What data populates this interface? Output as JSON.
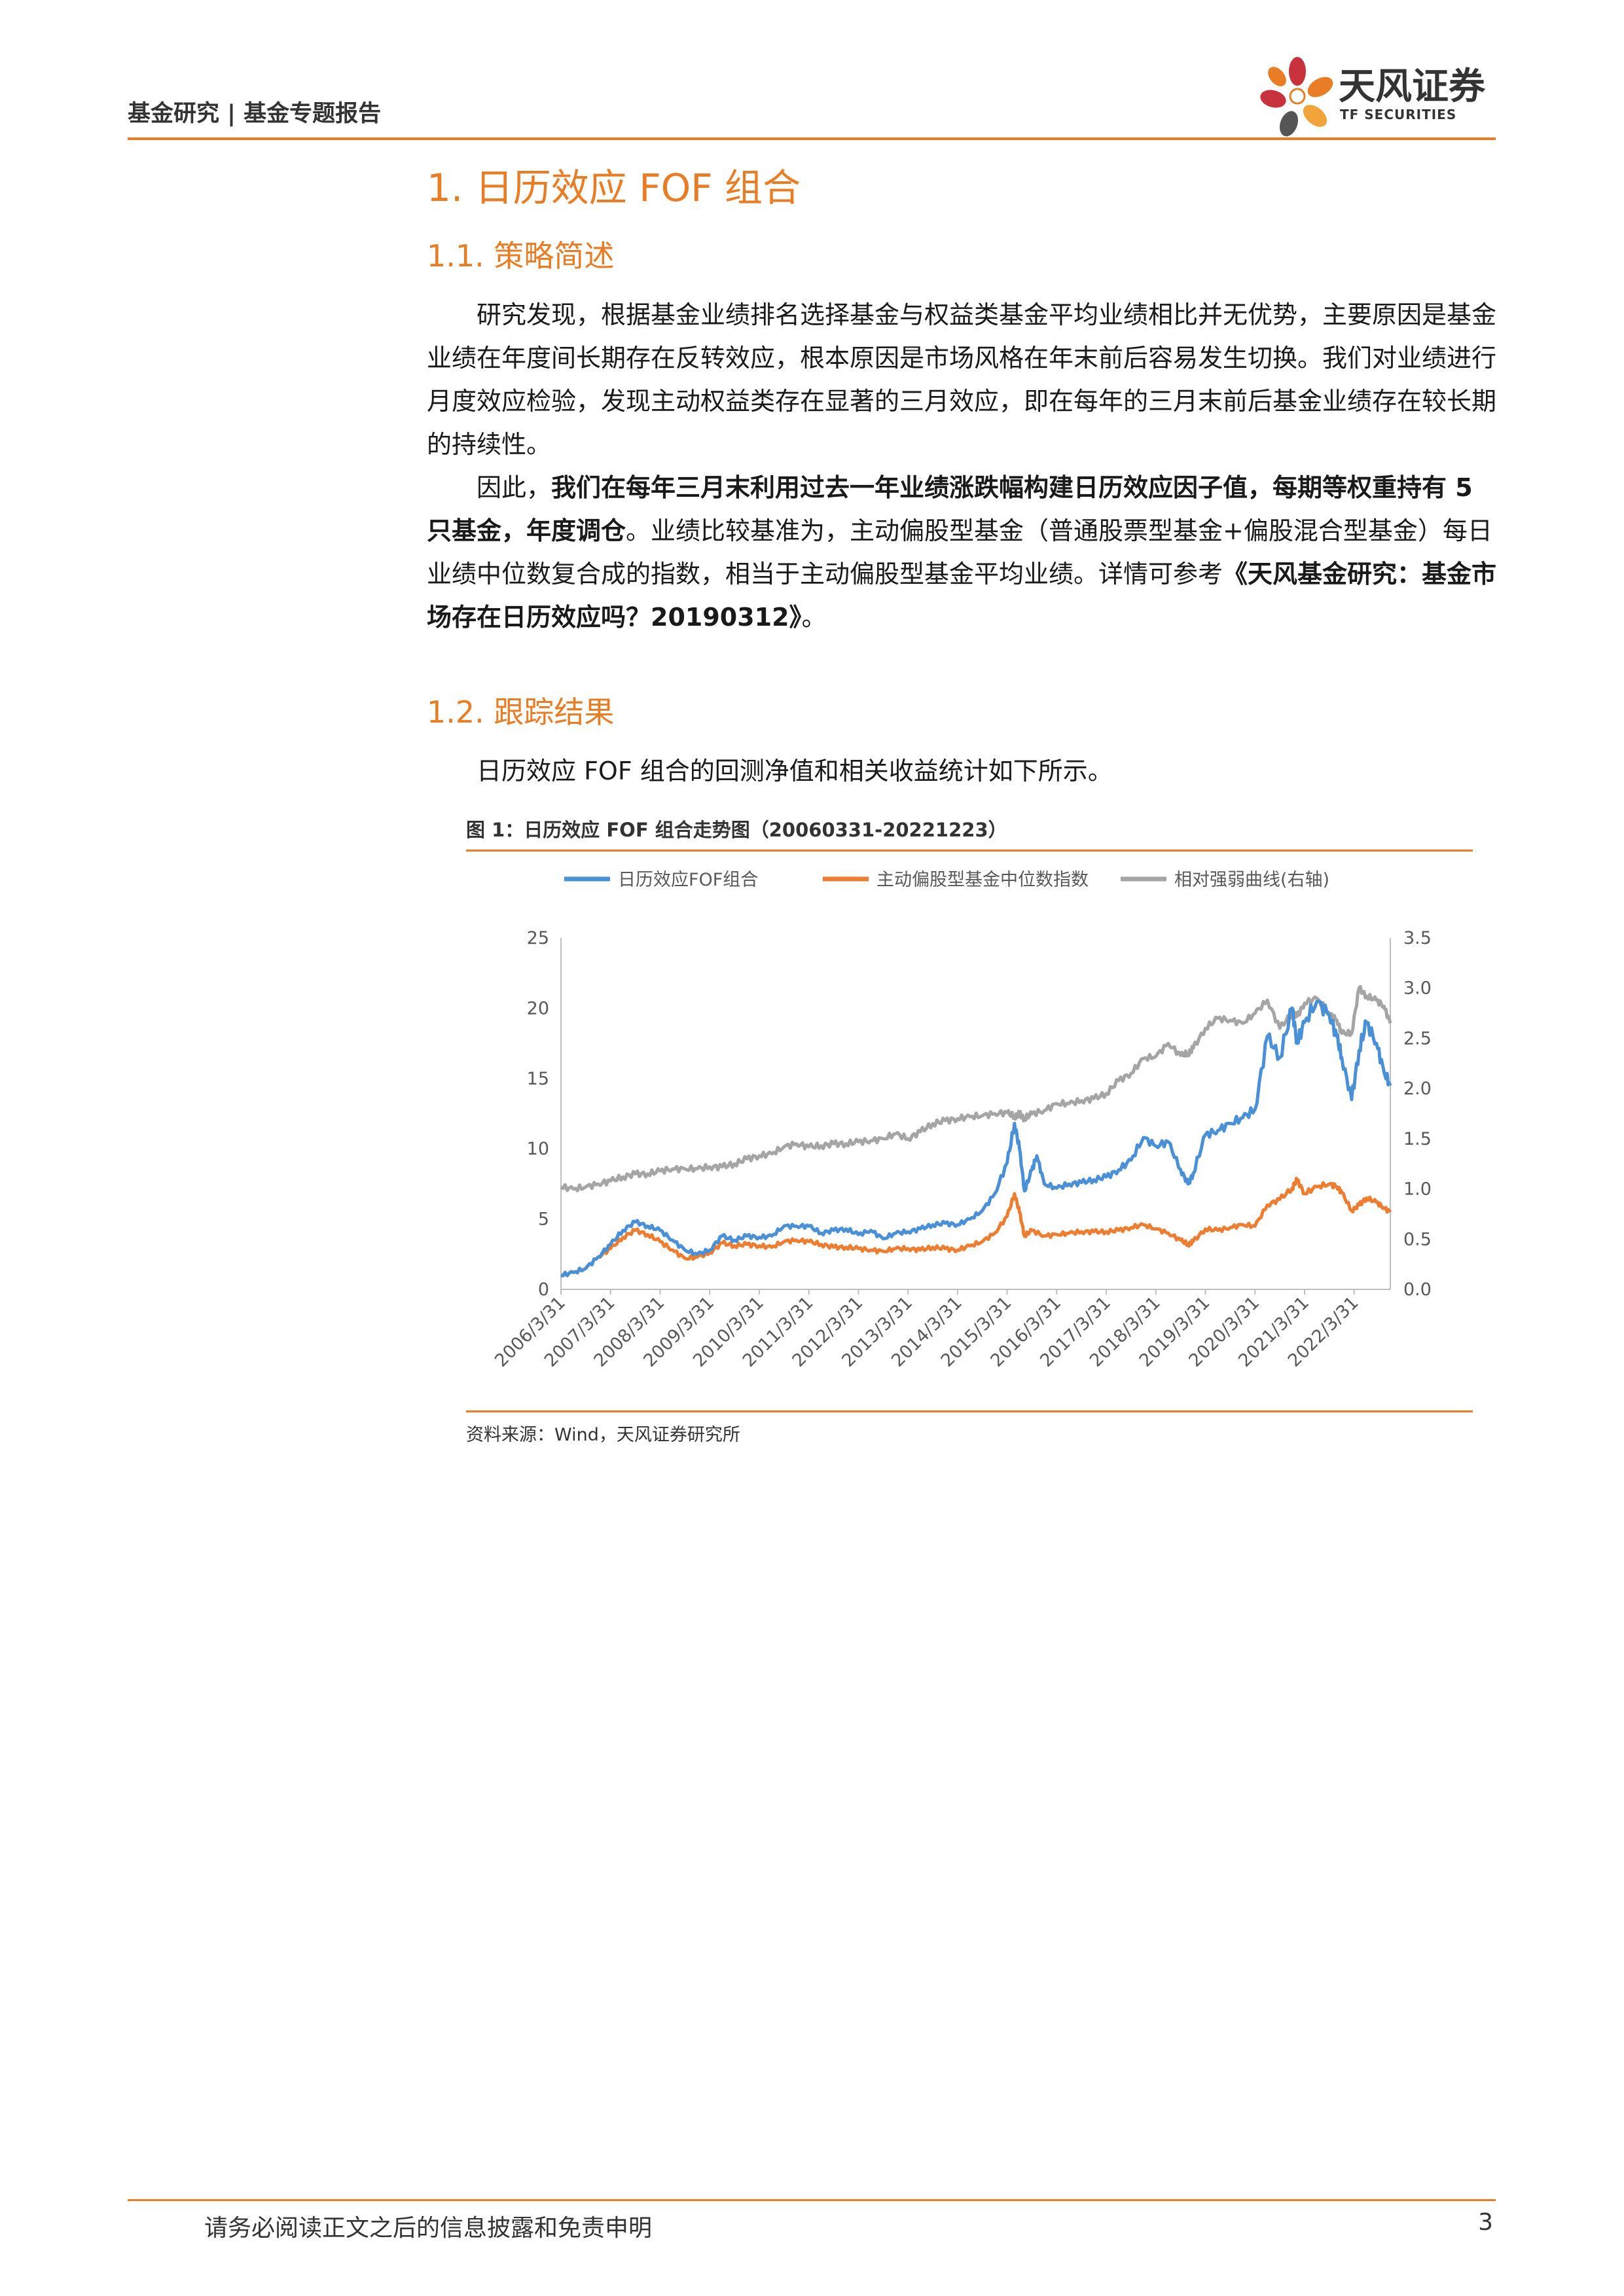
{
  "header": {
    "section": "基金研究 | 基金专题报告",
    "logo_name": "天风证券",
    "logo_en": "TF SECURITIES"
  },
  "h1": "1. 日历效应 FOF 组合",
  "sec1": {
    "title": "1.1. 策略简述",
    "p1": "研究发现，根据基金业绩排名选择基金与权益类基金平均业绩相比并无优势，主要原因是基金业绩在年度间长期存在反转效应，根本原因是市场风格在年末前后容易发生切换。我们对业绩进行月度效应检验，发现主动权益类存在显著的三月效应，即在每年的三月末前后基金业绩存在较长期的持续性。",
    "p2_a": "因此，",
    "p2_b": "我们在每年三月末利用过去一年业绩涨跌幅构建日历效应因子值，每期等权重持有 5 只基金，年度调仓",
    "p2_c": "。业绩比较基准为，主动偏股型基金（普通股票型基金+偏股混合型基金）每日业绩中位数复合成的指数，相当于主动偏股型基金平均业绩。详情可参考",
    "p2_d": "《天风基金研究：基金市场存在日历效应吗？20190312》",
    "p2_e": "。"
  },
  "sec2": {
    "title": "1.2. 跟踪结果",
    "p1": "日历效应 FOF 组合的回测净值和相关收益统计如下所示。"
  },
  "figure": {
    "title": "图 1：日历效应 FOF 组合走势图（20060331-20221223）",
    "source": "资料来源：Wind，天风证券研究所"
  },
  "chart_data": {
    "type": "line",
    "title": "",
    "x": [
      "2006/3/31",
      "2007/3/31",
      "2008/3/31",
      "2009/3/31",
      "2010/3/31",
      "2011/3/31",
      "2012/3/31",
      "2013/3/31",
      "2014/3/31",
      "2015/3/31",
      "2016/3/31",
      "2017/3/31",
      "2018/3/31",
      "2019/3/31",
      "2020/3/31",
      "2021/3/31",
      "2022/3/31"
    ],
    "x_range": [
      2006.25,
      2022.98
    ],
    "ylim_left": [
      0,
      25
    ],
    "yticks_left": [
      "0",
      "5",
      "10",
      "15",
      "20",
      "25"
    ],
    "ylim_right": [
      0,
      3.5
    ],
    "yticks_right": [
      "0.0",
      "0.5",
      "1.0",
      "1.5",
      "2.0",
      "2.5",
      "3.0",
      "3.5"
    ],
    "legend_position": "top",
    "grid": false,
    "series": [
      {
        "name": "日历效应FOF组合",
        "axis": "left",
        "color": "#4a90d6",
        "points": [
          [
            2006.25,
            1.0
          ],
          [
            2006.5,
            1.2
          ],
          [
            2006.75,
            1.5
          ],
          [
            2007.0,
            2.3
          ],
          [
            2007.25,
            3.2
          ],
          [
            2007.5,
            4.2
          ],
          [
            2007.75,
            4.8
          ],
          [
            2008.0,
            4.5
          ],
          [
            2008.25,
            4.2
          ],
          [
            2008.5,
            3.5
          ],
          [
            2008.75,
            2.8
          ],
          [
            2009.0,
            2.5
          ],
          [
            2009.25,
            2.8
          ],
          [
            2009.5,
            3.8
          ],
          [
            2009.75,
            3.5
          ],
          [
            2010.0,
            3.8
          ],
          [
            2010.25,
            3.7
          ],
          [
            2010.5,
            3.8
          ],
          [
            2010.75,
            4.5
          ],
          [
            2011.0,
            4.5
          ],
          [
            2011.25,
            4.5
          ],
          [
            2011.5,
            4.0
          ],
          [
            2011.75,
            4.2
          ],
          [
            2012.0,
            4.3
          ],
          [
            2012.25,
            3.9
          ],
          [
            2012.5,
            4.2
          ],
          [
            2012.75,
            3.6
          ],
          [
            2013.0,
            4.0
          ],
          [
            2013.25,
            4.1
          ],
          [
            2013.5,
            4.3
          ],
          [
            2013.75,
            4.6
          ],
          [
            2014.0,
            4.7
          ],
          [
            2014.25,
            4.6
          ],
          [
            2014.5,
            5.0
          ],
          [
            2014.75,
            5.6
          ],
          [
            2015.0,
            6.8
          ],
          [
            2015.25,
            9.0
          ],
          [
            2015.4,
            11.8
          ],
          [
            2015.5,
            10.0
          ],
          [
            2015.6,
            7.0
          ],
          [
            2015.75,
            8.5
          ],
          [
            2015.85,
            9.5
          ],
          [
            2016.0,
            7.5
          ],
          [
            2016.25,
            7.2
          ],
          [
            2016.5,
            7.5
          ],
          [
            2016.75,
            7.6
          ],
          [
            2017.0,
            7.8
          ],
          [
            2017.25,
            8.0
          ],
          [
            2017.5,
            8.5
          ],
          [
            2017.75,
            9.2
          ],
          [
            2018.0,
            10.8
          ],
          [
            2018.25,
            10.2
          ],
          [
            2018.5,
            10.5
          ],
          [
            2018.75,
            8.5
          ],
          [
            2018.9,
            7.5
          ],
          [
            2019.0,
            8.2
          ],
          [
            2019.25,
            11.0
          ],
          [
            2019.5,
            11.3
          ],
          [
            2019.75,
            11.8
          ],
          [
            2020.0,
            12.2
          ],
          [
            2020.25,
            12.8
          ],
          [
            2020.5,
            18.0
          ],
          [
            2020.75,
            16.5
          ],
          [
            2021.0,
            20.0
          ],
          [
            2021.1,
            17.5
          ],
          [
            2021.25,
            19.0
          ],
          [
            2021.5,
            20.5
          ],
          [
            2021.75,
            19.5
          ],
          [
            2021.9,
            18.0
          ],
          [
            2022.0,
            16.5
          ],
          [
            2022.2,
            13.5
          ],
          [
            2022.35,
            17.0
          ],
          [
            2022.5,
            19.0
          ],
          [
            2022.7,
            17.5
          ],
          [
            2022.85,
            15.5
          ],
          [
            2022.98,
            14.5
          ]
        ]
      },
      {
        "name": "主动偏股型基金中位数指数",
        "axis": "left",
        "color": "#ed7d31",
        "points": [
          [
            2006.25,
            1.0
          ],
          [
            2006.5,
            1.2
          ],
          [
            2006.75,
            1.5
          ],
          [
            2007.0,
            2.3
          ],
          [
            2007.25,
            2.9
          ],
          [
            2007.5,
            3.7
          ],
          [
            2007.75,
            4.2
          ],
          [
            2008.0,
            3.9
          ],
          [
            2008.25,
            3.4
          ],
          [
            2008.5,
            2.8
          ],
          [
            2008.75,
            2.2
          ],
          [
            2009.0,
            2.3
          ],
          [
            2009.25,
            2.6
          ],
          [
            2009.5,
            3.3
          ],
          [
            2009.75,
            3.1
          ],
          [
            2010.0,
            3.2
          ],
          [
            2010.25,
            3.1
          ],
          [
            2010.5,
            3.0
          ],
          [
            2010.75,
            3.4
          ],
          [
            2011.0,
            3.5
          ],
          [
            2011.25,
            3.4
          ],
          [
            2011.5,
            3.2
          ],
          [
            2011.75,
            3.0
          ],
          [
            2012.0,
            3.0
          ],
          [
            2012.25,
            2.9
          ],
          [
            2012.5,
            2.8
          ],
          [
            2012.75,
            2.7
          ],
          [
            2013.0,
            2.9
          ],
          [
            2013.25,
            2.9
          ],
          [
            2013.5,
            2.8
          ],
          [
            2013.75,
            3.0
          ],
          [
            2014.0,
            2.9
          ],
          [
            2014.25,
            2.8
          ],
          [
            2014.5,
            3.1
          ],
          [
            2014.75,
            3.4
          ],
          [
            2015.0,
            4.0
          ],
          [
            2015.25,
            5.2
          ],
          [
            2015.4,
            6.8
          ],
          [
            2015.5,
            5.5
          ],
          [
            2015.6,
            3.8
          ],
          [
            2015.75,
            4.2
          ],
          [
            2016.0,
            3.8
          ],
          [
            2016.25,
            3.9
          ],
          [
            2016.5,
            4.0
          ],
          [
            2016.75,
            4.1
          ],
          [
            2017.0,
            4.1
          ],
          [
            2017.25,
            4.1
          ],
          [
            2017.5,
            4.2
          ],
          [
            2017.75,
            4.4
          ],
          [
            2018.0,
            4.6
          ],
          [
            2018.25,
            4.3
          ],
          [
            2018.5,
            4.0
          ],
          [
            2018.75,
            3.5
          ],
          [
            2018.9,
            3.2
          ],
          [
            2019.0,
            3.4
          ],
          [
            2019.25,
            4.3
          ],
          [
            2019.5,
            4.2
          ],
          [
            2019.75,
            4.4
          ],
          [
            2020.0,
            4.6
          ],
          [
            2020.25,
            4.5
          ],
          [
            2020.5,
            6.0
          ],
          [
            2020.75,
            6.4
          ],
          [
            2021.0,
            7.2
          ],
          [
            2021.1,
            7.8
          ],
          [
            2021.25,
            6.8
          ],
          [
            2021.5,
            7.3
          ],
          [
            2021.75,
            7.5
          ],
          [
            2021.9,
            7.3
          ],
          [
            2022.0,
            6.9
          ],
          [
            2022.2,
            5.6
          ],
          [
            2022.35,
            6.0
          ],
          [
            2022.5,
            6.5
          ],
          [
            2022.7,
            6.2
          ],
          [
            2022.85,
            5.8
          ],
          [
            2022.98,
            5.5
          ]
        ]
      },
      {
        "name": "相对强弱曲线(右轴)",
        "axis": "right",
        "color": "#a5a5a5",
        "points": [
          [
            2006.25,
            1.02
          ],
          [
            2006.5,
            1.0
          ],
          [
            2006.75,
            1.02
          ],
          [
            2007.0,
            1.05
          ],
          [
            2007.25,
            1.08
          ],
          [
            2007.5,
            1.12
          ],
          [
            2007.75,
            1.15
          ],
          [
            2008.0,
            1.15
          ],
          [
            2008.25,
            1.18
          ],
          [
            2008.5,
            1.2
          ],
          [
            2008.75,
            1.2
          ],
          [
            2009.0,
            1.2
          ],
          [
            2009.25,
            1.22
          ],
          [
            2009.5,
            1.22
          ],
          [
            2009.75,
            1.25
          ],
          [
            2010.0,
            1.3
          ],
          [
            2010.25,
            1.33
          ],
          [
            2010.5,
            1.35
          ],
          [
            2010.75,
            1.42
          ],
          [
            2011.0,
            1.45
          ],
          [
            2011.25,
            1.42
          ],
          [
            2011.5,
            1.43
          ],
          [
            2011.75,
            1.45
          ],
          [
            2012.0,
            1.45
          ],
          [
            2012.25,
            1.47
          ],
          [
            2012.5,
            1.48
          ],
          [
            2012.75,
            1.5
          ],
          [
            2013.0,
            1.55
          ],
          [
            2013.25,
            1.5
          ],
          [
            2013.5,
            1.57
          ],
          [
            2013.75,
            1.65
          ],
          [
            2014.0,
            1.68
          ],
          [
            2014.25,
            1.7
          ],
          [
            2014.5,
            1.72
          ],
          [
            2014.75,
            1.73
          ],
          [
            2015.0,
            1.75
          ],
          [
            2015.25,
            1.76
          ],
          [
            2015.4,
            1.72
          ],
          [
            2015.5,
            1.75
          ],
          [
            2015.6,
            1.7
          ],
          [
            2015.75,
            1.75
          ],
          [
            2016.0,
            1.78
          ],
          [
            2016.25,
            1.85
          ],
          [
            2016.5,
            1.85
          ],
          [
            2016.75,
            1.88
          ],
          [
            2017.0,
            1.9
          ],
          [
            2017.25,
            1.95
          ],
          [
            2017.5,
            2.08
          ],
          [
            2017.75,
            2.15
          ],
          [
            2018.0,
            2.3
          ],
          [
            2018.25,
            2.32
          ],
          [
            2018.5,
            2.45
          ],
          [
            2018.75,
            2.33
          ],
          [
            2018.9,
            2.35
          ],
          [
            2019.0,
            2.4
          ],
          [
            2019.25,
            2.6
          ],
          [
            2019.5,
            2.7
          ],
          [
            2019.75,
            2.68
          ],
          [
            2020.0,
            2.65
          ],
          [
            2020.25,
            2.75
          ],
          [
            2020.5,
            2.88
          ],
          [
            2020.75,
            2.6
          ],
          [
            2021.0,
            2.75
          ],
          [
            2021.1,
            2.72
          ],
          [
            2021.25,
            2.85
          ],
          [
            2021.5,
            2.9
          ],
          [
            2021.75,
            2.75
          ],
          [
            2021.9,
            2.68
          ],
          [
            2022.0,
            2.55
          ],
          [
            2022.2,
            2.55
          ],
          [
            2022.35,
            3.0
          ],
          [
            2022.5,
            2.92
          ],
          [
            2022.7,
            2.88
          ],
          [
            2022.85,
            2.82
          ],
          [
            2022.98,
            2.65
          ]
        ]
      }
    ]
  },
  "footer": {
    "disclaimer": "请务必阅读正文之后的信息披露和免责申明",
    "page": "3"
  }
}
